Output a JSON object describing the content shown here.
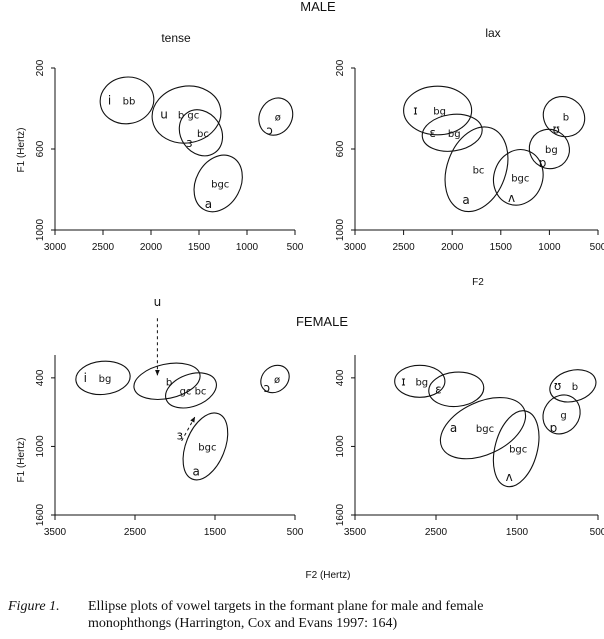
{
  "headings": {
    "male": "MALE",
    "female": "FEMALE",
    "tense": "tense",
    "lax": "lax"
  },
  "caption": {
    "label": "Figure 1.",
    "line1": "Ellipse plots of vowel targets in the formant plane for male and female",
    "line2": "monophthongs (Harrington, Cox and Evans 1997: 164)"
  },
  "colors": {
    "ink": "#111111"
  },
  "chart_data": [
    {
      "type": "scatter",
      "id": "male-tense",
      "title": "tense",
      "xlabel": "",
      "ylabel": "F1 (Hertz)",
      "x_reversed": true,
      "y_reversed": true,
      "xlim": [
        3000,
        500
      ],
      "ylim": [
        200,
        1000
      ],
      "xticks": [
        "3000",
        "2500",
        "2000",
        "1500",
        "1000",
        "500"
      ],
      "yticks": [
        "200",
        "600",
        "1000"
      ],
      "ytick_values": [
        200,
        600,
        1000
      ],
      "ellipses": [
        {
          "label": "i",
          "x": 2250,
          "y": 360,
          "rx": 280,
          "ry": 115,
          "angle": -8,
          "inner": "bb"
        },
        {
          "label": "u",
          "x": 1630,
          "y": 430,
          "rx": 360,
          "ry": 140,
          "angle": -10,
          "inner": "b gc"
        },
        {
          "label": "ɜ",
          "x": 1480,
          "y": 520,
          "rx": 210,
          "ry": 120,
          "angle": -35,
          "inner": "bc"
        },
        {
          "label": "a",
          "x": 1300,
          "y": 770,
          "rx": 310,
          "ry": 110,
          "angle": -62,
          "inner": "bgc"
        },
        {
          "label": "ɔ",
          "x": 700,
          "y": 440,
          "rx": 200,
          "ry": 80,
          "angle": -62,
          "inner": "ø"
        }
      ]
    },
    {
      "type": "scatter",
      "id": "male-lax",
      "title": "lax",
      "xlabel": "F2",
      "ylabel": "",
      "x_reversed": true,
      "y_reversed": true,
      "xlim": [
        3000,
        500
      ],
      "ylim": [
        200,
        1000
      ],
      "xticks": [
        "3000",
        "2500",
        "2000",
        "1500",
        "1000",
        "500"
      ],
      "yticks": [
        "200",
        "600",
        "1000"
      ],
      "ytick_values": [
        200,
        600,
        1000
      ],
      "ellipses": [
        {
          "label": "ɪ",
          "x": 2150,
          "y": 410,
          "rx": 350,
          "ry": 120,
          "angle": 0,
          "inner": "bg"
        },
        {
          "label": "ɛ",
          "x": 2000,
          "y": 520,
          "rx": 310,
          "ry": 90,
          "angle": -8,
          "inner": "bg"
        },
        {
          "label": "a",
          "x": 1750,
          "y": 700,
          "rx": 450,
          "ry": 145,
          "angle": -70,
          "inner": "bc"
        },
        {
          "label": "ʌ",
          "x": 1320,
          "y": 740,
          "rx": 290,
          "ry": 120,
          "angle": -70,
          "inner": "bgc"
        },
        {
          "label": "ɒ",
          "x": 1000,
          "y": 600,
          "rx": 200,
          "ry": 100,
          "angle": -60,
          "inner": "bg"
        },
        {
          "label": "ʊ",
          "x": 850,
          "y": 440,
          "rx": 200,
          "ry": 105,
          "angle": -55,
          "inner": "b"
        }
      ]
    },
    {
      "type": "scatter",
      "id": "female-tense",
      "title": "",
      "xlabel": "",
      "ylabel": "F1 (Hertz)",
      "x_reversed": true,
      "y_reversed": true,
      "xlim": [
        3500,
        500
      ],
      "ylim": [
        200,
        1600
      ],
      "xticks": [
        "3500",
        "2500",
        "1500",
        "500"
      ],
      "yticks": [
        "400",
        "1000",
        "1600"
      ],
      "ytick_values": [
        400,
        1000,
        1600
      ],
      "annotations": [
        {
          "text": "u",
          "x": 2220,
          "y": -230,
          "arrow_to": [
            2220,
            380
          ]
        },
        {
          "text": "ɜ",
          "x": 1940,
          "y": 940,
          "arrow_to": [
            1750,
            740
          ]
        }
      ],
      "ellipses": [
        {
          "label": "i",
          "x": 2900,
          "y": 400,
          "rx": 340,
          "ry": 145,
          "angle": -5,
          "inner": "bg"
        },
        {
          "label": "",
          "x": 2100,
          "y": 430,
          "rx": 420,
          "ry": 150,
          "angle": -12,
          "inner": "b"
        },
        {
          "label": "",
          "x": 1800,
          "y": 510,
          "rx": 330,
          "ry": 140,
          "angle": -20,
          "inner": "gc bc"
        },
        {
          "label": "a",
          "x": 1620,
          "y": 1000,
          "rx": 440,
          "ry": 170,
          "angle": -68,
          "inner": "bgc"
        },
        {
          "label": "ɔ",
          "x": 750,
          "y": 410,
          "rx": 190,
          "ry": 110,
          "angle": -40,
          "inner": "ø"
        }
      ]
    },
    {
      "type": "scatter",
      "id": "female-lax",
      "title": "",
      "xlabel": "F2 (Hertz)",
      "ylabel": "",
      "x_reversed": true,
      "y_reversed": true,
      "xlim": [
        3500,
        500
      ],
      "ylim": [
        200,
        1600
      ],
      "xticks": [
        "3500",
        "2500",
        "1500",
        "500"
      ],
      "yticks": [
        "400",
        "1000",
        "1600"
      ],
      "ytick_values": [
        400,
        1000,
        1600
      ],
      "ellipses": [
        {
          "label": "ɪ",
          "x": 2700,
          "y": 430,
          "rx": 310,
          "ry": 140,
          "angle": 0,
          "inner": "bg"
        },
        {
          "label": "ɛ",
          "x": 2250,
          "y": 500,
          "rx": 340,
          "ry": 150,
          "angle": -5,
          "inner": ""
        },
        {
          "label": "a",
          "x": 1920,
          "y": 840,
          "rx": 560,
          "ry": 230,
          "angle": -25,
          "inner": "bgc"
        },
        {
          "label": "ʌ",
          "x": 1510,
          "y": 1020,
          "rx": 480,
          "ry": 185,
          "angle": -75,
          "inner": "bgc"
        },
        {
          "label": "ɒ",
          "x": 950,
          "y": 720,
          "rx": 250,
          "ry": 155,
          "angle": -55,
          "inner": "g"
        },
        {
          "label": "ʊ",
          "x": 810,
          "y": 470,
          "rx": 290,
          "ry": 135,
          "angle": -15,
          "inner": "b"
        }
      ]
    }
  ]
}
